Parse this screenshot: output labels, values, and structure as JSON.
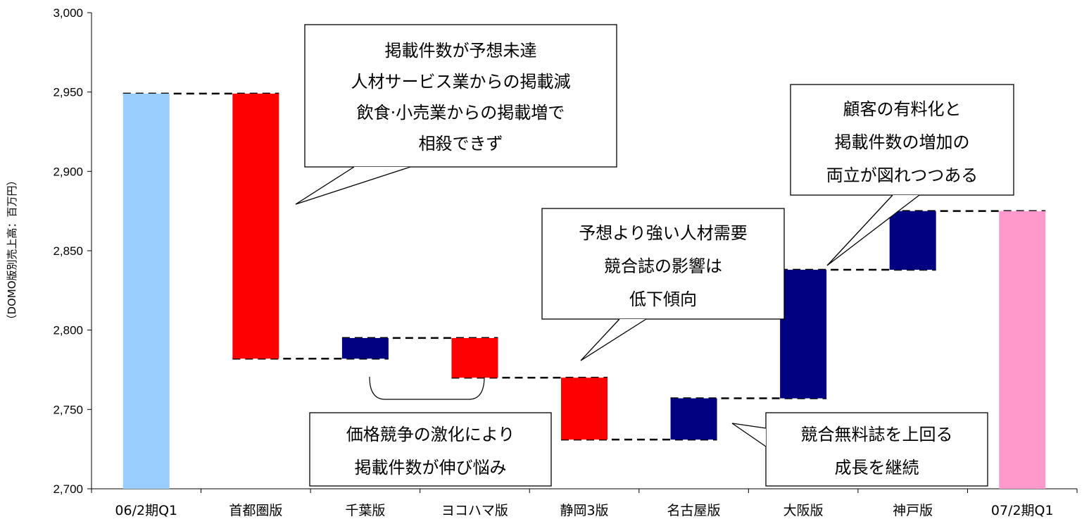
{
  "chart_data": {
    "type": "bar",
    "subtype": "waterfall",
    "ylabel": "（DOMO版別売上高：百万円）",
    "ylim": [
      2700,
      3000
    ],
    "yticks": [
      2700,
      2750,
      2800,
      2850,
      2900,
      2950,
      3000
    ],
    "ytick_labels": [
      "2,700",
      "2,750",
      "2,800",
      "2,850",
      "2,900",
      "2,950",
      "3,000"
    ],
    "categories": [
      "06/2期Q1",
      "首都圏版",
      "千葉版",
      "ヨコハマ版",
      "静岡3版",
      "名古屋版",
      "大阪版",
      "神戸版",
      "07/2期Q1"
    ],
    "bars": [
      {
        "category": "06/2期Q1",
        "kind": "total",
        "start": 2700,
        "end": 2949,
        "color": "#99ccff"
      },
      {
        "category": "首都圏版",
        "kind": "decrease",
        "start": 2949,
        "end": 2782,
        "color": "#ff0000"
      },
      {
        "category": "千葉版",
        "kind": "increase",
        "start": 2782,
        "end": 2795,
        "color": "#000080"
      },
      {
        "category": "ヨコハマ版",
        "kind": "decrease",
        "start": 2795,
        "end": 2770,
        "color": "#ff0000"
      },
      {
        "category": "静岡3版",
        "kind": "decrease",
        "start": 2770,
        "end": 2731,
        "color": "#ff0000"
      },
      {
        "category": "名古屋版",
        "kind": "increase",
        "start": 2731,
        "end": 2757,
        "color": "#000080"
      },
      {
        "category": "大阪版",
        "kind": "increase",
        "start": 2757,
        "end": 2838,
        "color": "#000080"
      },
      {
        "category": "神戸版",
        "kind": "increase",
        "start": 2838,
        "end": 2875,
        "color": "#000080"
      },
      {
        "category": "07/2期Q1",
        "kind": "total",
        "start": 2700,
        "end": 2875,
        "color": "#ff99cc"
      }
    ],
    "grid": false,
    "legend": "none",
    "annotations": [
      {
        "id": "c1",
        "lines": [
          "掲載件数が予想未達",
          "人材サービス業からの掲載減",
          "飲食·小売業からの掲載増で",
          "相殺できず"
        ]
      },
      {
        "id": "c2",
        "lines": [
          "顧客の有料化と",
          "掲載件数の増加の",
          "両立が図れつつある"
        ]
      },
      {
        "id": "c3",
        "lines": [
          "予想より強い人材需要",
          "競合誌の影響は",
          "低下傾向"
        ]
      },
      {
        "id": "c4",
        "lines": [
          "価格競争の激化により",
          "掲載件数が伸び悩み"
        ]
      },
      {
        "id": "c5",
        "lines": [
          "競合無料誌を上回る",
          "成長を継続"
        ]
      }
    ]
  }
}
